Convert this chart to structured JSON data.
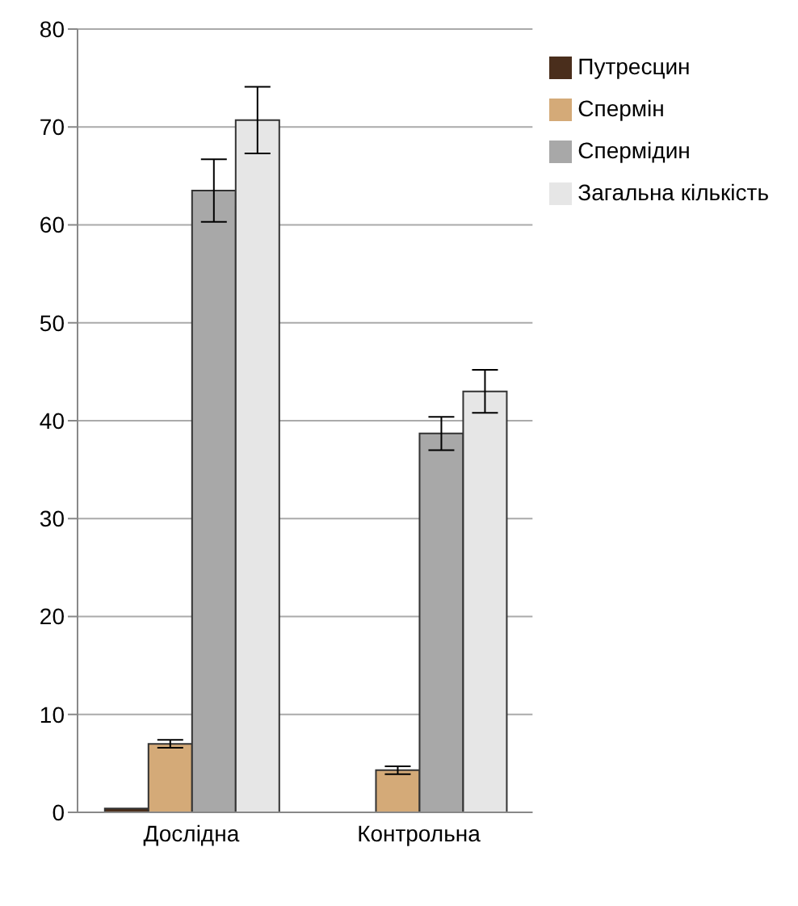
{
  "chart_data": {
    "type": "bar",
    "categories": [
      "Дослідна",
      "Контрольна"
    ],
    "series": [
      {
        "name": "Путресцин",
        "color": "#4a2e1c",
        "values": [
          0.4,
          0
        ]
      },
      {
        "name": "Спермін",
        "color": "#d4aa78",
        "values": [
          7,
          4.3
        ],
        "errors": [
          0.4,
          0.4
        ]
      },
      {
        "name": "Спермідин",
        "color": "#a8a8a8",
        "values": [
          63.5,
          38.7
        ],
        "errors": [
          3.2,
          1.7
        ]
      },
      {
        "name": "Загальна кількість",
        "color": "#e6e6e6",
        "values": [
          70.7,
          43
        ],
        "errors": [
          3.4,
          2.2
        ]
      }
    ],
    "ylim": [
      0,
      80
    ],
    "yticks": [
      0,
      10,
      20,
      30,
      40,
      50,
      60,
      70,
      80
    ],
    "grid": "y",
    "legend": "top right"
  }
}
